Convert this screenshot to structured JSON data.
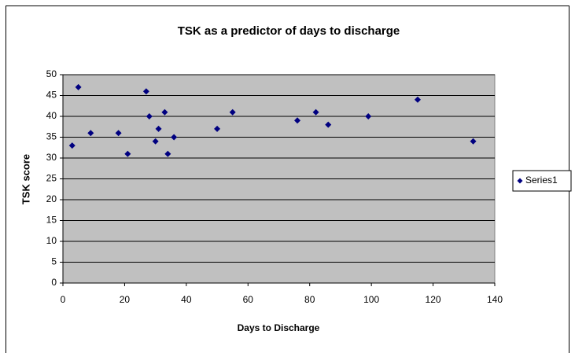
{
  "chart_data": {
    "type": "scatter",
    "title": "TSK as a predictor of days to discharge",
    "x_label": "Days to Discharge",
    "y_label": "TSK score",
    "series": [
      {
        "name": "Series1",
        "color": "#000080",
        "x": [
          3,
          5,
          9,
          18,
          21,
          27,
          28,
          30,
          31,
          33,
          34,
          36,
          50,
          55,
          76,
          82,
          86,
          99,
          115,
          133
        ],
        "values": [
          33,
          47,
          36,
          36,
          31,
          46,
          40,
          34,
          37,
          41,
          31,
          35,
          37,
          41,
          39,
          41,
          38,
          40,
          44,
          34
        ]
      }
    ],
    "xlim": [
      0,
      140
    ],
    "xticks": [
      0,
      20,
      40,
      60,
      80,
      100,
      120,
      140
    ],
    "ylim": [
      0,
      50
    ],
    "yticks": [
      0,
      5,
      10,
      15,
      20,
      25,
      30,
      35,
      40,
      45,
      50
    ],
    "grid": true,
    "plot_background": "#c0c0c0",
    "legend": "right"
  }
}
